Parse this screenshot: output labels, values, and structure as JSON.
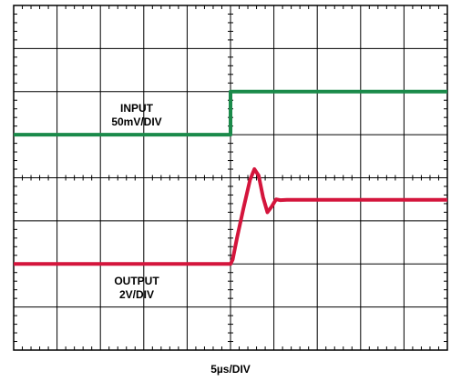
{
  "chart_data": {
    "type": "line",
    "title": "",
    "xlabel": "5µs/DIV",
    "ylabel": "",
    "x_divisions": 10,
    "y_divisions": 8,
    "grid": true,
    "legend": "none",
    "annotations": [
      {
        "id": "input",
        "lines": [
          "INPUT",
          "50mV/DIV"
        ]
      },
      {
        "id": "output",
        "lines": [
          "OUTPUT",
          "2V/DIV"
        ]
      }
    ],
    "series": [
      {
        "id": "input",
        "color": "#1a8a4a",
        "x": [
          0,
          5.0,
          5.0,
          10
        ],
        "y": [
          5.0,
          5.0,
          6.0,
          6.0
        ]
      },
      {
        "id": "output",
        "color": "#d4153c",
        "x": [
          0,
          5.0,
          5.05,
          5.15,
          5.3,
          5.45,
          5.55,
          5.65,
          5.75,
          5.85,
          5.95,
          6.05,
          6.15,
          6.3,
          10
        ],
        "y": [
          2.0,
          2.0,
          2.1,
          2.6,
          3.3,
          3.95,
          4.2,
          4.05,
          3.55,
          3.2,
          3.33,
          3.5,
          3.48,
          3.49,
          3.49
        ]
      }
    ]
  }
}
